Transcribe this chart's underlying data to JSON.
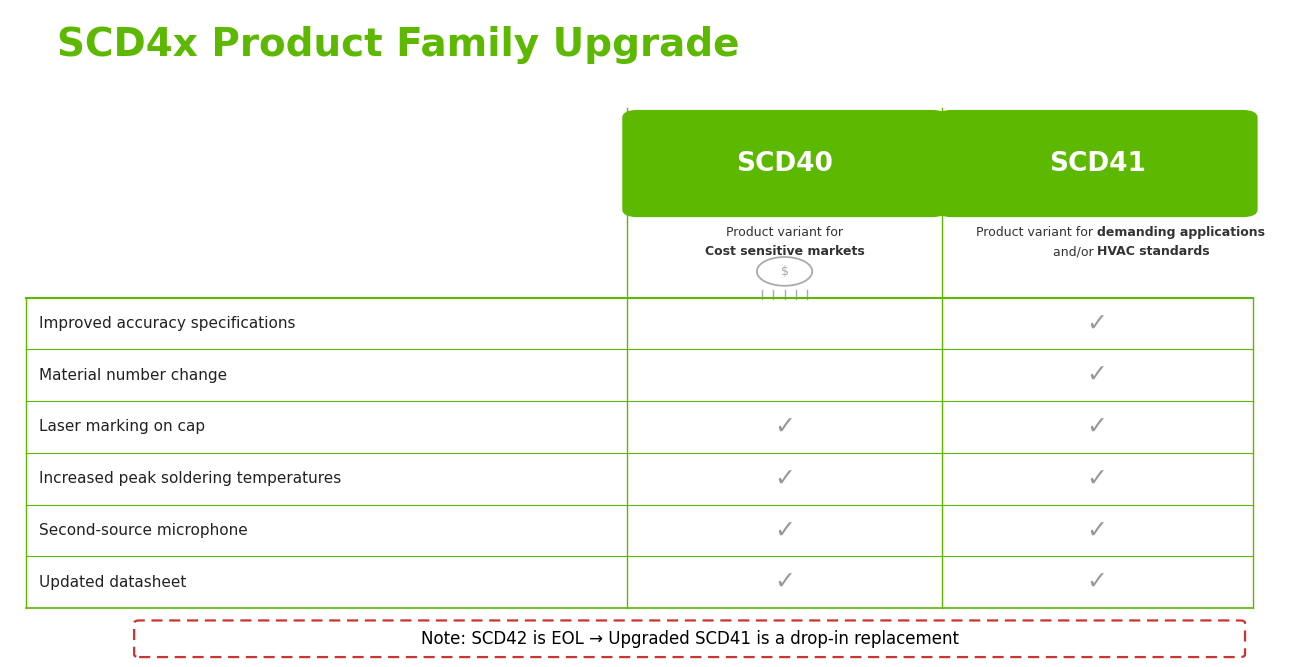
{
  "title": "SCD4x Product Family Upgrade",
  "title_color": "#5cb800",
  "title_fontsize": 28,
  "bg_color": "#ffffff",
  "header_green": "#5cb800",
  "header_text_color": "#ffffff",
  "col1_header": "SCD40",
  "col2_header": "SCD41",
  "col1_subtitle_line1_plain": "Product variant for",
  "col1_subtitle_line2_bold": "Cost sensitive markets",
  "col2_subtitle_line1_plain": "Product variant for ",
  "col2_subtitle_line1_bold": "demanding applications",
  "col2_subtitle_line2_plain": "and/or ",
  "col2_subtitle_line2_bold": "HVAC standards",
  "rows": [
    "Improved accuracy specifications",
    "Material number change",
    "Laser marking on cap",
    "Increased peak soldering temperatures",
    "Second-source microphone",
    "Updated datasheet"
  ],
  "col1_checks": [
    false,
    false,
    true,
    true,
    true,
    true
  ],
  "col2_checks": [
    true,
    true,
    true,
    true,
    true,
    true
  ],
  "check_color": "#999999",
  "line_color": "#5cb800",
  "note_text": "Note: SCD42 is EOL → Upgraded SCD41 is a drop-in replacement",
  "note_border_color": "#cc3333",
  "note_text_color": "#000000",
  "note_fontsize": 12,
  "row_label_fontsize": 11,
  "header_fontsize": 19,
  "subtitle_fontsize": 9
}
